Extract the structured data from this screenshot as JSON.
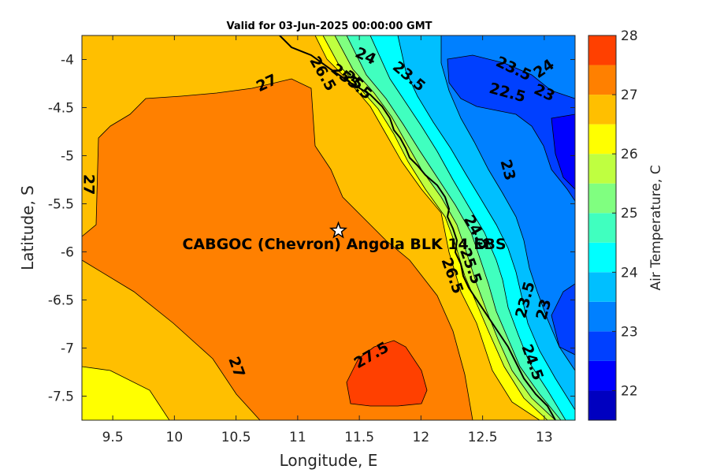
{
  "chart_data": {
    "type": "contour",
    "title": "Valid for 03-Jun-2025 00:00:00 GMT",
    "xlabel": "Longitude, E",
    "ylabel": "Latitude, S",
    "xlim": [
      9.25,
      13.25
    ],
    "ylim": [
      -7.75,
      -3.75
    ],
    "x_ticks": [
      "9.5",
      "10",
      "10.5",
      "11",
      "11.5",
      "12",
      "12.5",
      "13"
    ],
    "y_ticks": [
      "-4",
      "-4.5",
      "-5",
      "-5.5",
      "-6",
      "-6.5",
      "-7",
      "-7.5"
    ],
    "colorbar": {
      "label": "Air Temperature, C",
      "range": [
        21.5,
        28
      ],
      "ticks": [
        "22",
        "23",
        "24",
        "25",
        "26",
        "27",
        "28"
      ],
      "levels": [
        {
          "from": 21.5,
          "to": 22.0,
          "color": "#0000c0"
        },
        {
          "from": 22.0,
          "to": 22.5,
          "color": "#0000ff"
        },
        {
          "from": 22.5,
          "to": 23.0,
          "color": "#0040ff"
        },
        {
          "from": 23.0,
          "to": 23.5,
          "color": "#0080ff"
        },
        {
          "from": 23.5,
          "to": 24.0,
          "color": "#00bfff"
        },
        {
          "from": 24.0,
          "to": 24.5,
          "color": "#00ffff"
        },
        {
          "from": 24.5,
          "to": 25.0,
          "color": "#40ffbf"
        },
        {
          "from": 25.0,
          "to": 25.5,
          "color": "#80ff80"
        },
        {
          "from": 25.5,
          "to": 26.0,
          "color": "#bfff40"
        },
        {
          "from": 26.0,
          "to": 26.5,
          "color": "#ffff00"
        },
        {
          "from": 26.5,
          "to": 27.0,
          "color": "#ffbf00"
        },
        {
          "from": 27.0,
          "to": 27.5,
          "color": "#ff8000"
        },
        {
          "from": 27.5,
          "to": 28.0,
          "color": "#ff4000"
        },
        {
          "from": 28.0,
          "to": 28.5,
          "color": "#ff0000"
        }
      ]
    },
    "contour_labels": [
      {
        "text": "27",
        "lon": 10.75,
        "lat": -4.25,
        "rot": -25
      },
      {
        "text": "27",
        "lon": 9.3,
        "lat": -5.3,
        "rot": 90
      },
      {
        "text": "27",
        "lon": 10.5,
        "lat": -7.2,
        "rot": 70
      },
      {
        "text": "27.5",
        "lon": 11.6,
        "lat": -7.08,
        "rot": -30
      },
      {
        "text": "26.5",
        "lon": 11.2,
        "lat": -4.15,
        "rot": 60
      },
      {
        "text": "25",
        "lon": 11.35,
        "lat": -4.15,
        "rot": 40
      },
      {
        "text": "25",
        "lon": 11.45,
        "lat": -4.22,
        "rot": 40
      },
      {
        "text": "5.5",
        "lon": 11.5,
        "lat": -4.3,
        "rot": 40
      },
      {
        "text": "24",
        "lon": 11.55,
        "lat": -3.97,
        "rot": 25
      },
      {
        "text": "23.5",
        "lon": 11.9,
        "lat": -4.18,
        "rot": 40
      },
      {
        "text": "23.5",
        "lon": 12.75,
        "lat": -4.1,
        "rot": 25
      },
      {
        "text": "24",
        "lon": 13.0,
        "lat": -4.1,
        "rot": -35
      },
      {
        "text": "22.5",
        "lon": 12.7,
        "lat": -4.35,
        "rot": 15
      },
      {
        "text": "23",
        "lon": 13.0,
        "lat": -4.35,
        "rot": 25
      },
      {
        "text": "23",
        "lon": 12.7,
        "lat": -5.15,
        "rot": 75
      },
      {
        "text": "24.5",
        "lon": 12.45,
        "lat": -5.8,
        "rot": 60
      },
      {
        "text": "26.5",
        "lon": 12.25,
        "lat": -6.25,
        "rot": 70
      },
      {
        "text": "25.5",
        "lon": 12.4,
        "lat": -6.15,
        "rot": 70
      },
      {
        "text": "23.5",
        "lon": 12.85,
        "lat": -6.5,
        "rot": -75
      },
      {
        "text": "23",
        "lon": 13.0,
        "lat": -6.6,
        "rot": -75
      },
      {
        "text": "24.5",
        "lon": 12.9,
        "lat": -7.15,
        "rot": 70
      }
    ],
    "site": {
      "label": "CABGOC (Chevron)  Angola BLK 14 EBS",
      "lon": 11.33,
      "lat": -5.78
    }
  }
}
